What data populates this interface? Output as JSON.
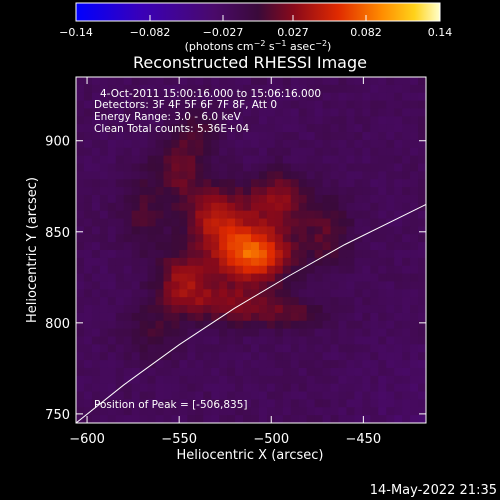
{
  "colorbar": {
    "ticks": [
      "−0.14",
      "−0.082",
      "−0.027",
      "0.027",
      "0.082",
      "0.14"
    ],
    "unit_main": "(photons cm",
    "unit_exp1": "−2",
    "unit_mid": " s",
    "unit_exp2": "−1",
    "unit_end": " asec",
    "unit_exp3": "−2",
    "unit_close": ")"
  },
  "title": "Reconstructed RHESSI Image",
  "annotations": {
    "time": "4-Oct-2011 15:00:16.000 to 15:06:16.000",
    "detectors": "Detectors: 3F 4F 5F 6F 7F 8F, Att 0",
    "energy": "Energy Range: 3.0 - 6.0 keV",
    "clean": "Clean     Total counts: 5.36E+04",
    "peak": "Position of Peak = [-506,835]"
  },
  "footer_timestamp": "14-May-2022 21:35",
  "chart_data": {
    "type": "heatmap",
    "title": "Reconstructed RHESSI Image",
    "xlabel": "Heliocentric X (arcsec)",
    "ylabel": "Heliocentric Y (arcsec)",
    "xlim": [
      -606,
      -416
    ],
    "ylim": [
      745,
      935
    ],
    "x_ticks": [
      -600,
      -550,
      -500,
      -450
    ],
    "x_tick_labels": [
      "−600",
      "−550",
      "−500",
      "−450"
    ],
    "y_ticks": [
      750,
      800,
      850,
      900
    ],
    "y_tick_labels": [
      "750",
      "800",
      "850",
      "900"
    ],
    "colorbar_range": [
      -0.14,
      0.14
    ],
    "colorbar_ticks": [
      -0.14,
      -0.082,
      -0.027,
      0.027,
      0.082,
      0.14
    ],
    "peak": {
      "x": -506,
      "y": 835
    },
    "source_blobs": [
      {
        "x": -510,
        "y": 838,
        "sx": 14,
        "sy": 11,
        "amp": 0.1
      },
      {
        "x": -530,
        "y": 858,
        "sx": 12,
        "sy": 12,
        "amp": 0.06
      },
      {
        "x": -497,
        "y": 868,
        "sx": 11,
        "sy": 10,
        "amp": 0.05
      },
      {
        "x": -547,
        "y": 822,
        "sx": 11,
        "sy": 12,
        "amp": 0.055
      },
      {
        "x": -520,
        "y": 810,
        "sx": 16,
        "sy": 8,
        "amp": 0.04
      },
      {
        "x": -550,
        "y": 885,
        "sx": 10,
        "sy": 12,
        "amp": 0.035
      },
      {
        "x": -538,
        "y": 905,
        "sx": 8,
        "sy": 9,
        "amp": 0.025
      },
      {
        "x": -570,
        "y": 860,
        "sx": 9,
        "sy": 14,
        "amp": 0.025
      },
      {
        "x": -470,
        "y": 850,
        "sx": 10,
        "sy": 14,
        "amp": 0.03
      },
      {
        "x": -490,
        "y": 805,
        "sx": 14,
        "sy": 6,
        "amp": 0.028
      },
      {
        "x": -565,
        "y": 795,
        "sx": 10,
        "sy": 10,
        "amp": 0.022
      }
    ],
    "limb_curve": [
      {
        "x": -606,
        "y": 745
      },
      {
        "x": -580,
        "y": 766
      },
      {
        "x": -550,
        "y": 788
      },
      {
        "x": -520,
        "y": 808
      },
      {
        "x": -490,
        "y": 826
      },
      {
        "x": -460,
        "y": 843
      },
      {
        "x": -416,
        "y": 865
      }
    ]
  }
}
